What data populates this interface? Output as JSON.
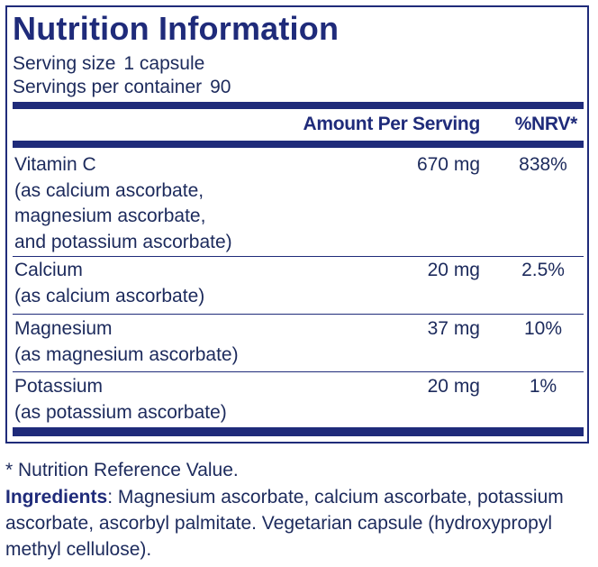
{
  "label": {
    "title": "Nutrition Information",
    "serving_size_label": "Serving size",
    "serving_size_value": "1 capsule",
    "servings_per_container_label": "Servings per container",
    "servings_per_container_value": "90",
    "header_amount": "Amount Per Serving",
    "header_nrv": "%NRV*",
    "rows": [
      {
        "name": "Vitamin C",
        "sub_lines": [
          "(as calcium ascorbate,",
          "magnesium ascorbate,",
          "and potassium ascorbate)"
        ],
        "amount": "670 mg",
        "nrv": "838%"
      },
      {
        "name": "Calcium",
        "sub_lines": [
          "(as calcium ascorbate)"
        ],
        "amount": "20 mg",
        "nrv": "2.5%"
      },
      {
        "name": "Magnesium",
        "sub_lines": [
          "(as magnesium ascorbate)"
        ],
        "amount": "37 mg",
        "nrv": "10%"
      },
      {
        "name": "Potassium",
        "sub_lines": [
          "(as potassium ascorbate)"
        ],
        "amount": "20 mg",
        "nrv": "1%"
      }
    ]
  },
  "footnote": "* Nutrition Reference Value.",
  "ingredients": {
    "label": "Ingredients",
    "text": ": Magnesium ascorbate, calcium ascorbate, potassium ascorbate, ascorbyl palmitate. Vegetarian capsule (hydroxypropyl methyl cellulose)."
  },
  "colors": {
    "navy": "#1f2b7a",
    "text": "#1c2a5c",
    "background": "#ffffff"
  }
}
